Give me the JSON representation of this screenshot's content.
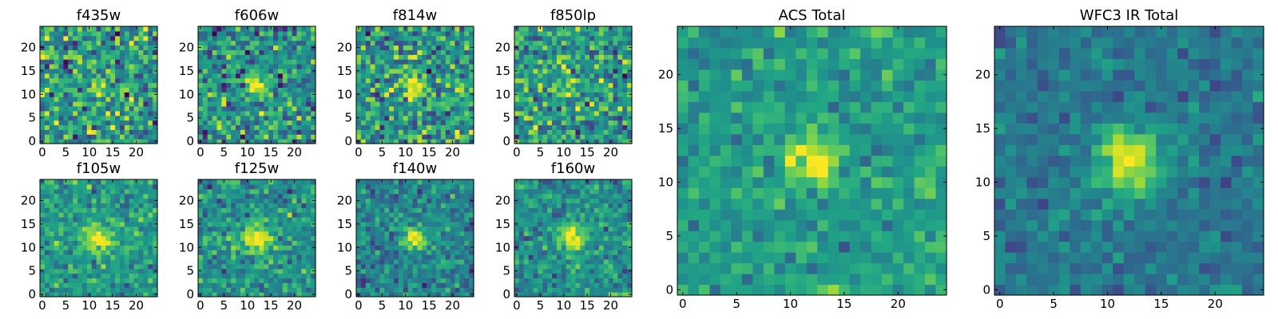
{
  "chart_data": {
    "type": "heatmap",
    "colormap": "viridis",
    "grid_size": 25,
    "panels": [
      {
        "id": "f435w",
        "title": "f435w",
        "xticks": [
          0,
          5,
          10,
          15,
          20
        ],
        "yticks": [
          0,
          5,
          10,
          15,
          20
        ],
        "xlim": [
          0,
          24
        ],
        "ylim": [
          0,
          24
        ],
        "source": {
          "center": [
            12,
            12
          ],
          "sigma": 1.5,
          "amplitude": 0.35
        },
        "noise": 0.9,
        "base": 0.55,
        "seed": 11
      },
      {
        "id": "f606w",
        "title": "f606w",
        "xticks": [
          0,
          5,
          10,
          15,
          20
        ],
        "yticks": [
          0,
          5,
          10,
          15,
          20
        ],
        "xlim": [
          0,
          24
        ],
        "ylim": [
          0,
          24
        ],
        "source": {
          "center": [
            12,
            12
          ],
          "sigma": 1.5,
          "amplitude": 0.55
        },
        "noise": 0.8,
        "base": 0.5,
        "seed": 23
      },
      {
        "id": "f814w",
        "title": "f814w",
        "xticks": [
          0,
          5,
          10,
          15,
          20
        ],
        "yticks": [
          0,
          5,
          10,
          15,
          20
        ],
        "xlim": [
          0,
          24
        ],
        "ylim": [
          0,
          24
        ],
        "source": {
          "center": [
            12,
            12
          ],
          "sigma": 1.5,
          "amplitude": 0.45
        },
        "noise": 0.85,
        "base": 0.55,
        "seed": 37
      },
      {
        "id": "f850lp",
        "title": "f850lp",
        "xticks": [
          0,
          5,
          10,
          15,
          20
        ],
        "yticks": [
          0,
          5,
          10,
          15,
          20
        ],
        "xlim": [
          0,
          24
        ],
        "ylim": [
          0,
          24
        ],
        "source": {
          "center": [
            12,
            12
          ],
          "sigma": 1.5,
          "amplitude": 0.3
        },
        "noise": 0.85,
        "base": 0.55,
        "seed": 41
      },
      {
        "id": "f105w",
        "title": "f105w",
        "xticks": [
          0,
          5,
          10,
          15,
          20
        ],
        "yticks": [
          0,
          5,
          10,
          15,
          20
        ],
        "xlim": [
          0,
          24
        ],
        "ylim": [
          0,
          24
        ],
        "source": {
          "center": [
            12,
            12
          ],
          "sigma": 2.0,
          "amplitude": 0.5
        },
        "noise": 0.55,
        "base": 0.55,
        "seed": 53
      },
      {
        "id": "f125w",
        "title": "f125w",
        "xticks": [
          0,
          5,
          10,
          15,
          20
        ],
        "yticks": [
          0,
          5,
          10,
          15,
          20
        ],
        "xlim": [
          0,
          24
        ],
        "ylim": [
          0,
          24
        ],
        "source": {
          "center": [
            12,
            12
          ],
          "sigma": 2.0,
          "amplitude": 0.55
        },
        "noise": 0.55,
        "base": 0.5,
        "seed": 67
      },
      {
        "id": "f140w",
        "title": "f140w",
        "xticks": [
          0,
          5,
          10,
          15,
          20
        ],
        "yticks": [
          0,
          5,
          10,
          15,
          20
        ],
        "xlim": [
          0,
          24
        ],
        "ylim": [
          0,
          24
        ],
        "source": {
          "center": [
            12,
            12
          ],
          "sigma": 1.8,
          "amplitude": 0.6
        },
        "noise": 0.55,
        "base": 0.45,
        "seed": 79
      },
      {
        "id": "f160w",
        "title": "f160w",
        "xticks": [
          0,
          5,
          10,
          15,
          20
        ],
        "yticks": [
          0,
          5,
          10,
          15,
          20
        ],
        "xlim": [
          0,
          24
        ],
        "ylim": [
          0,
          24
        ],
        "source": {
          "center": [
            12,
            12
          ],
          "sigma": 2.0,
          "amplitude": 0.55
        },
        "noise": 0.55,
        "base": 0.5,
        "seed": 83
      },
      {
        "id": "acs-total",
        "title": "ACS Total",
        "xticks": [
          0,
          5,
          10,
          15,
          20
        ],
        "yticks": [
          0,
          5,
          10,
          15,
          20
        ],
        "xlim": [
          0,
          24
        ],
        "ylim": [
          0,
          24
        ],
        "source": {
          "center": [
            12,
            12
          ],
          "sigma": 1.6,
          "amplitude": 0.45
        },
        "noise": 0.45,
        "base": 0.55,
        "seed": 97
      },
      {
        "id": "wfc3-ir-total",
        "title": "WFC3 IR Total",
        "xticks": [
          0,
          5,
          10,
          15,
          20
        ],
        "yticks": [
          0,
          5,
          10,
          15,
          20
        ],
        "xlim": [
          0,
          24
        ],
        "ylim": [
          0,
          24
        ],
        "source": {
          "center": [
            12,
            12
          ],
          "sigma": 2.2,
          "amplitude": 0.6
        },
        "noise": 0.35,
        "base": 0.4,
        "seed": 101
      }
    ]
  }
}
